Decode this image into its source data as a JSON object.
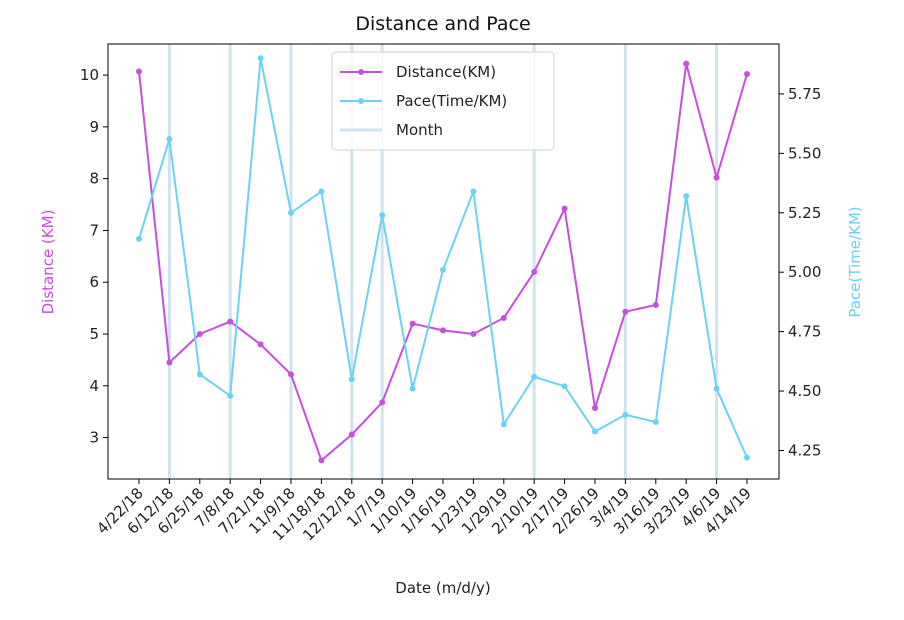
{
  "chart_data": {
    "type": "line",
    "title": "Distance and Pace",
    "xlabel": "Date (m/d/y)",
    "ylabel_left": "Distance (KM)",
    "ylabel_right": "Pace(Time/KM)",
    "categories": [
      "4/22/18",
      "6/12/18",
      "6/25/18",
      "7/8/18",
      "7/21/18",
      "11/9/18",
      "11/18/18",
      "12/12/18",
      "1/7/19",
      "1/10/19",
      "1/16/19",
      "1/23/19",
      "1/29/19",
      "2/10/19",
      "2/17/19",
      "2/26/19",
      "3/4/19",
      "3/16/19",
      "3/23/19",
      "4/6/19",
      "4/14/19"
    ],
    "yticks_left": [
      3,
      4,
      5,
      6,
      7,
      8,
      9,
      10
    ],
    "ylim_left": [
      2.2,
      10.6
    ],
    "yticks_right": [
      "4.25",
      "4.50",
      "4.75",
      "5.00",
      "5.25",
      "5.50",
      "5.75"
    ],
    "ylim_right": [
      4.13,
      5.96
    ],
    "month_markers": [
      "6/12/18",
      "7/8/18",
      "11/9/18",
      "12/12/18",
      "1/7/19",
      "2/10/19",
      "3/4/19",
      "4/6/19"
    ],
    "series": [
      {
        "name": "Distance(KM)",
        "axis": "left",
        "color": "#c64fdc",
        "values": [
          10.07,
          4.45,
          5.0,
          5.24,
          4.8,
          4.22,
          2.56,
          3.06,
          3.68,
          5.2,
          5.07,
          5.0,
          5.31,
          6.2,
          7.42,
          3.57,
          5.43,
          5.56,
          10.22,
          8.02,
          10.02
        ]
      },
      {
        "name": "Pace(Time/KM)",
        "axis": "right",
        "color": "#6bd3f2",
        "values": [
          5.14,
          5.56,
          4.57,
          4.48,
          5.9,
          5.25,
          5.34,
          4.55,
          5.24,
          4.51,
          5.01,
          5.34,
          4.36,
          4.56,
          4.52,
          4.33,
          4.4,
          4.37,
          5.32,
          4.51,
          4.22
        ]
      }
    ],
    "legend": {
      "position": "top-center",
      "entries": [
        "Distance(KM)",
        "Pace(Time/KM)",
        "Month"
      ]
    },
    "month_color": "#cfe3ee",
    "grid": false
  }
}
